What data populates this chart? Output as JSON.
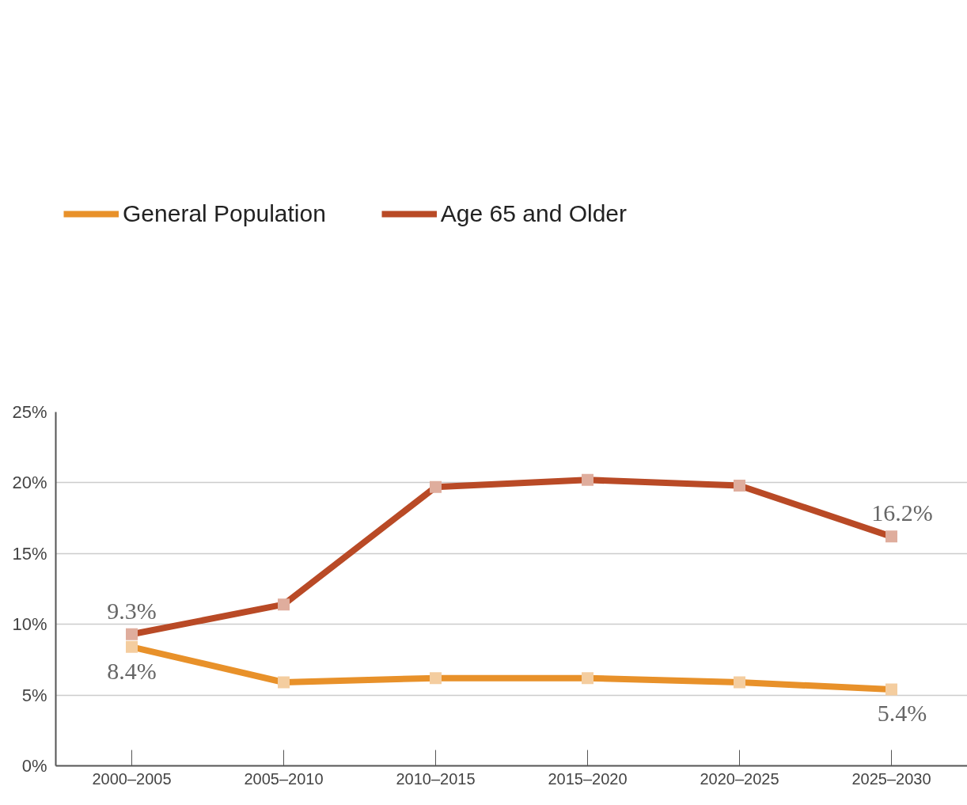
{
  "chart_data": {
    "type": "line",
    "categories": [
      "2000–2005",
      "2005–2010",
      "2010–2015",
      "2015–2020",
      "2020–2025",
      "2025–2030"
    ],
    "series": [
      {
        "name": "General Population",
        "color": "#e8912a",
        "values": [
          8.4,
          5.9,
          6.2,
          6.2,
          5.9,
          5.4
        ],
        "value_labels": [
          "8.4%",
          null,
          null,
          null,
          null,
          "5.4%"
        ]
      },
      {
        "name": "Age 65 and Older",
        "color": "#b94a26",
        "values": [
          9.3,
          11.4,
          19.7,
          20.2,
          19.8,
          16.2
        ],
        "value_labels": [
          "9.3%",
          null,
          null,
          null,
          null,
          "16.2%"
        ]
      }
    ],
    "ylim": [
      0,
      25
    ],
    "yticks": [
      {
        "value": 0,
        "label": "0%"
      },
      {
        "value": 5,
        "label": "5%"
      },
      {
        "value": 10,
        "label": "10%"
      },
      {
        "value": 15,
        "label": "15%"
      },
      {
        "value": 20,
        "label": "20%"
      },
      {
        "value": 25,
        "label": "25%"
      }
    ],
    "grid": "y",
    "legend": "top left",
    "marker": "square",
    "line_style": "solid"
  }
}
